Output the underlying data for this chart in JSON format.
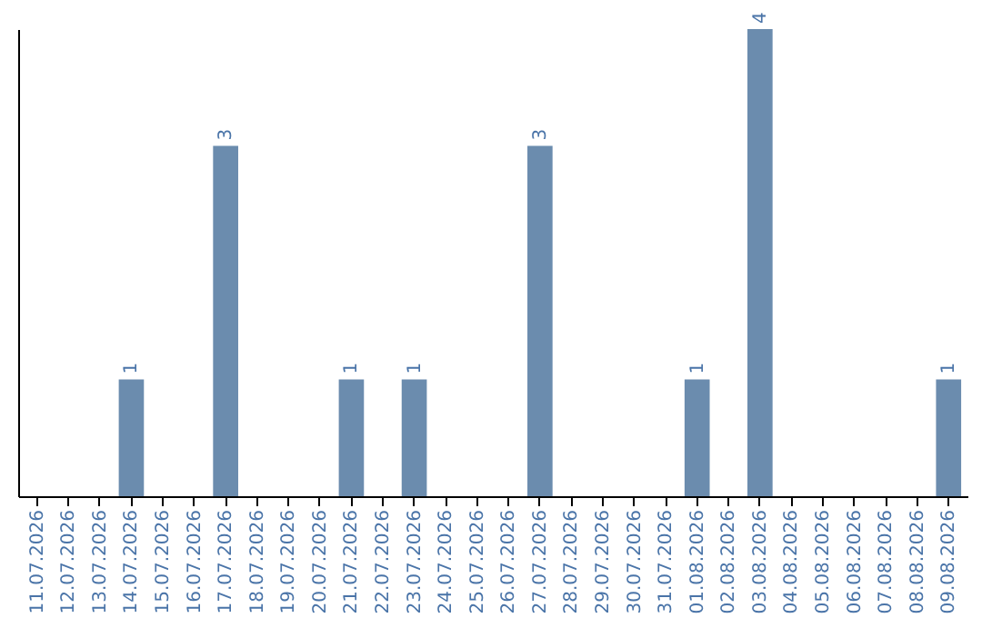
{
  "chart_data": {
    "type": "bar",
    "categories": [
      "11.07.2026",
      "12.07.2026",
      "13.07.2026",
      "14.07.2026",
      "15.07.2026",
      "16.07.2026",
      "17.07.2026",
      "18.07.2026",
      "19.07.2026",
      "20.07.2026",
      "21.07.2026",
      "22.07.2026",
      "23.07.2026",
      "24.07.2026",
      "25.07.2026",
      "26.07.2026",
      "27.07.2026",
      "28.07.2026",
      "29.07.2026",
      "30.07.2026",
      "31.07.2026",
      "01.08.2026",
      "02.08.2026",
      "03.08.2026",
      "04.08.2026",
      "05.08.2026",
      "06.08.2026",
      "07.08.2026",
      "08.08.2026",
      "09.08.2026"
    ],
    "values": [
      0,
      0,
      0,
      1,
      0,
      0,
      3,
      0,
      0,
      0,
      1,
      0,
      1,
      0,
      0,
      0,
      3,
      0,
      0,
      0,
      0,
      1,
      0,
      4,
      0,
      0,
      0,
      0,
      0,
      1
    ],
    "value_labels": [
      null,
      null,
      null,
      "1",
      null,
      null,
      "3",
      null,
      null,
      null,
      "1",
      null,
      "1",
      null,
      null,
      null,
      "3",
      null,
      null,
      null,
      null,
      "1",
      null,
      "4",
      null,
      null,
      null,
      null,
      null,
      "1"
    ],
    "color": "#6b8cae",
    "tick_labels": "x",
    "grid": false
  }
}
